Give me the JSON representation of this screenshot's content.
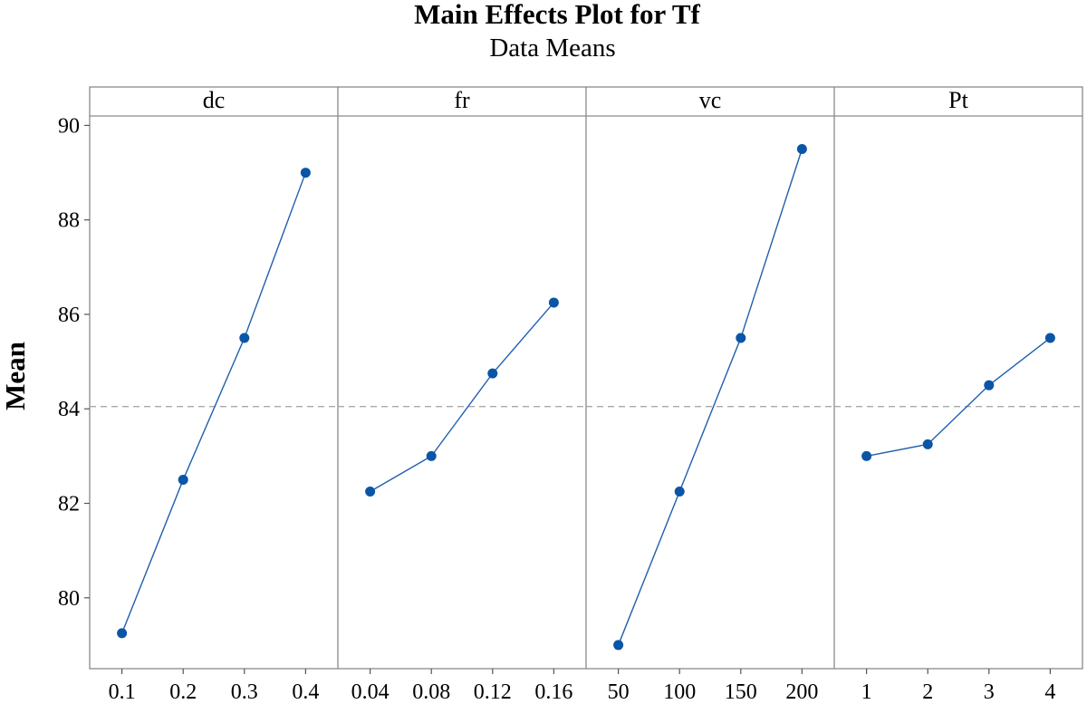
{
  "chart_data": {
    "type": "line",
    "title": "Main Effects Plot for Tf",
    "subtitle": "Data Means",
    "ylabel": "Mean",
    "ylim": [
      78.5,
      90.2
    ],
    "yticks": [
      80,
      82,
      84,
      86,
      88,
      90
    ],
    "reference_mean": 84.05,
    "line_color": "#1f5fae",
    "marker_color": "#0b55a6",
    "panels": [
      {
        "factor": "dc",
        "x_labels": [
          "0.1",
          "0.2",
          "0.3",
          "0.4"
        ],
        "values": [
          79.25,
          82.5,
          85.5,
          89.0
        ]
      },
      {
        "factor": "fr",
        "x_labels": [
          "0.04",
          "0.08",
          "0.12",
          "0.16"
        ],
        "values": [
          82.25,
          83.0,
          84.75,
          86.25
        ]
      },
      {
        "factor": "vc",
        "x_labels": [
          "50",
          "100",
          "150",
          "200"
        ],
        "values": [
          79.0,
          82.25,
          85.5,
          89.5
        ]
      },
      {
        "factor": "Pt",
        "x_labels": [
          "1",
          "2",
          "3",
          "4"
        ],
        "values": [
          83.0,
          83.25,
          84.5,
          85.5
        ]
      }
    ]
  }
}
